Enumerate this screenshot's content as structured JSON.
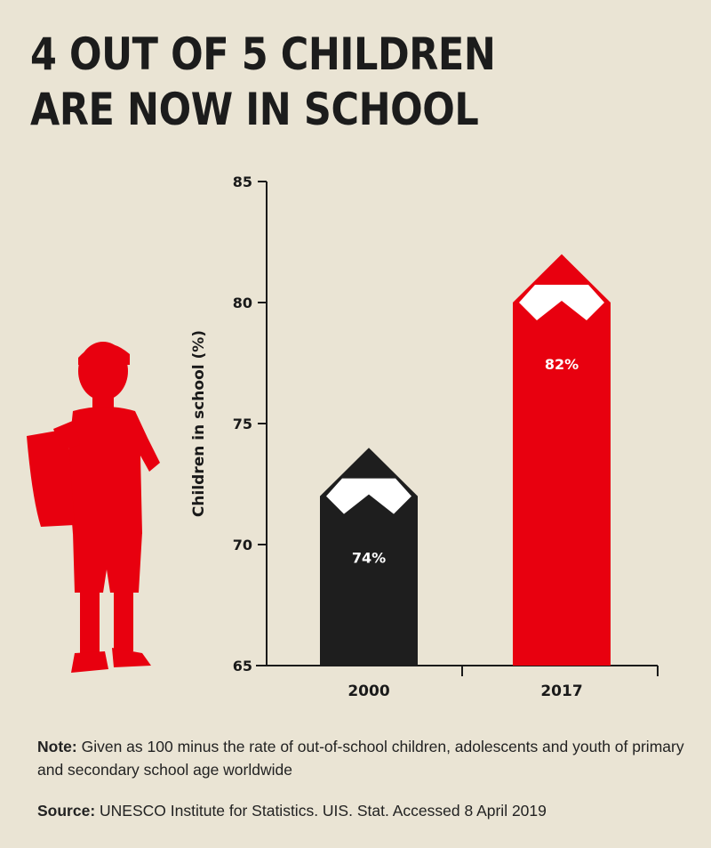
{
  "title_lines": [
    "4 OUT OF 5 CHILDREN",
    "ARE NOW IN SCHOOL"
  ],
  "chart_data": {
    "type": "bar",
    "categories": [
      "2000",
      "2017"
    ],
    "values": [
      74,
      82
    ],
    "data_labels": [
      "74%",
      "82%"
    ],
    "ylabel": "Children in school (%)",
    "ylim": [
      65,
      85
    ],
    "yticks": [
      "65",
      "70",
      "75",
      "80",
      "85"
    ],
    "bar_colors": [
      "#1e1e1e",
      "#e8000f"
    ],
    "grid": false,
    "bar_shape": "pencil"
  },
  "note": {
    "label": "Note:",
    "text": " Given as 100 minus the rate of out-of-school children, adolescents and youth of primary and secondary school age worldwide"
  },
  "source": {
    "label": "Source:",
    "text": " UNESCO Institute for Statistics. UIS. Stat. Accessed 8 April 2019"
  },
  "colors": {
    "background": "#eae4d4",
    "accent": "#e8000f",
    "dark": "#1e1e1e"
  },
  "illustration": "child-with-backpack-silhouette"
}
